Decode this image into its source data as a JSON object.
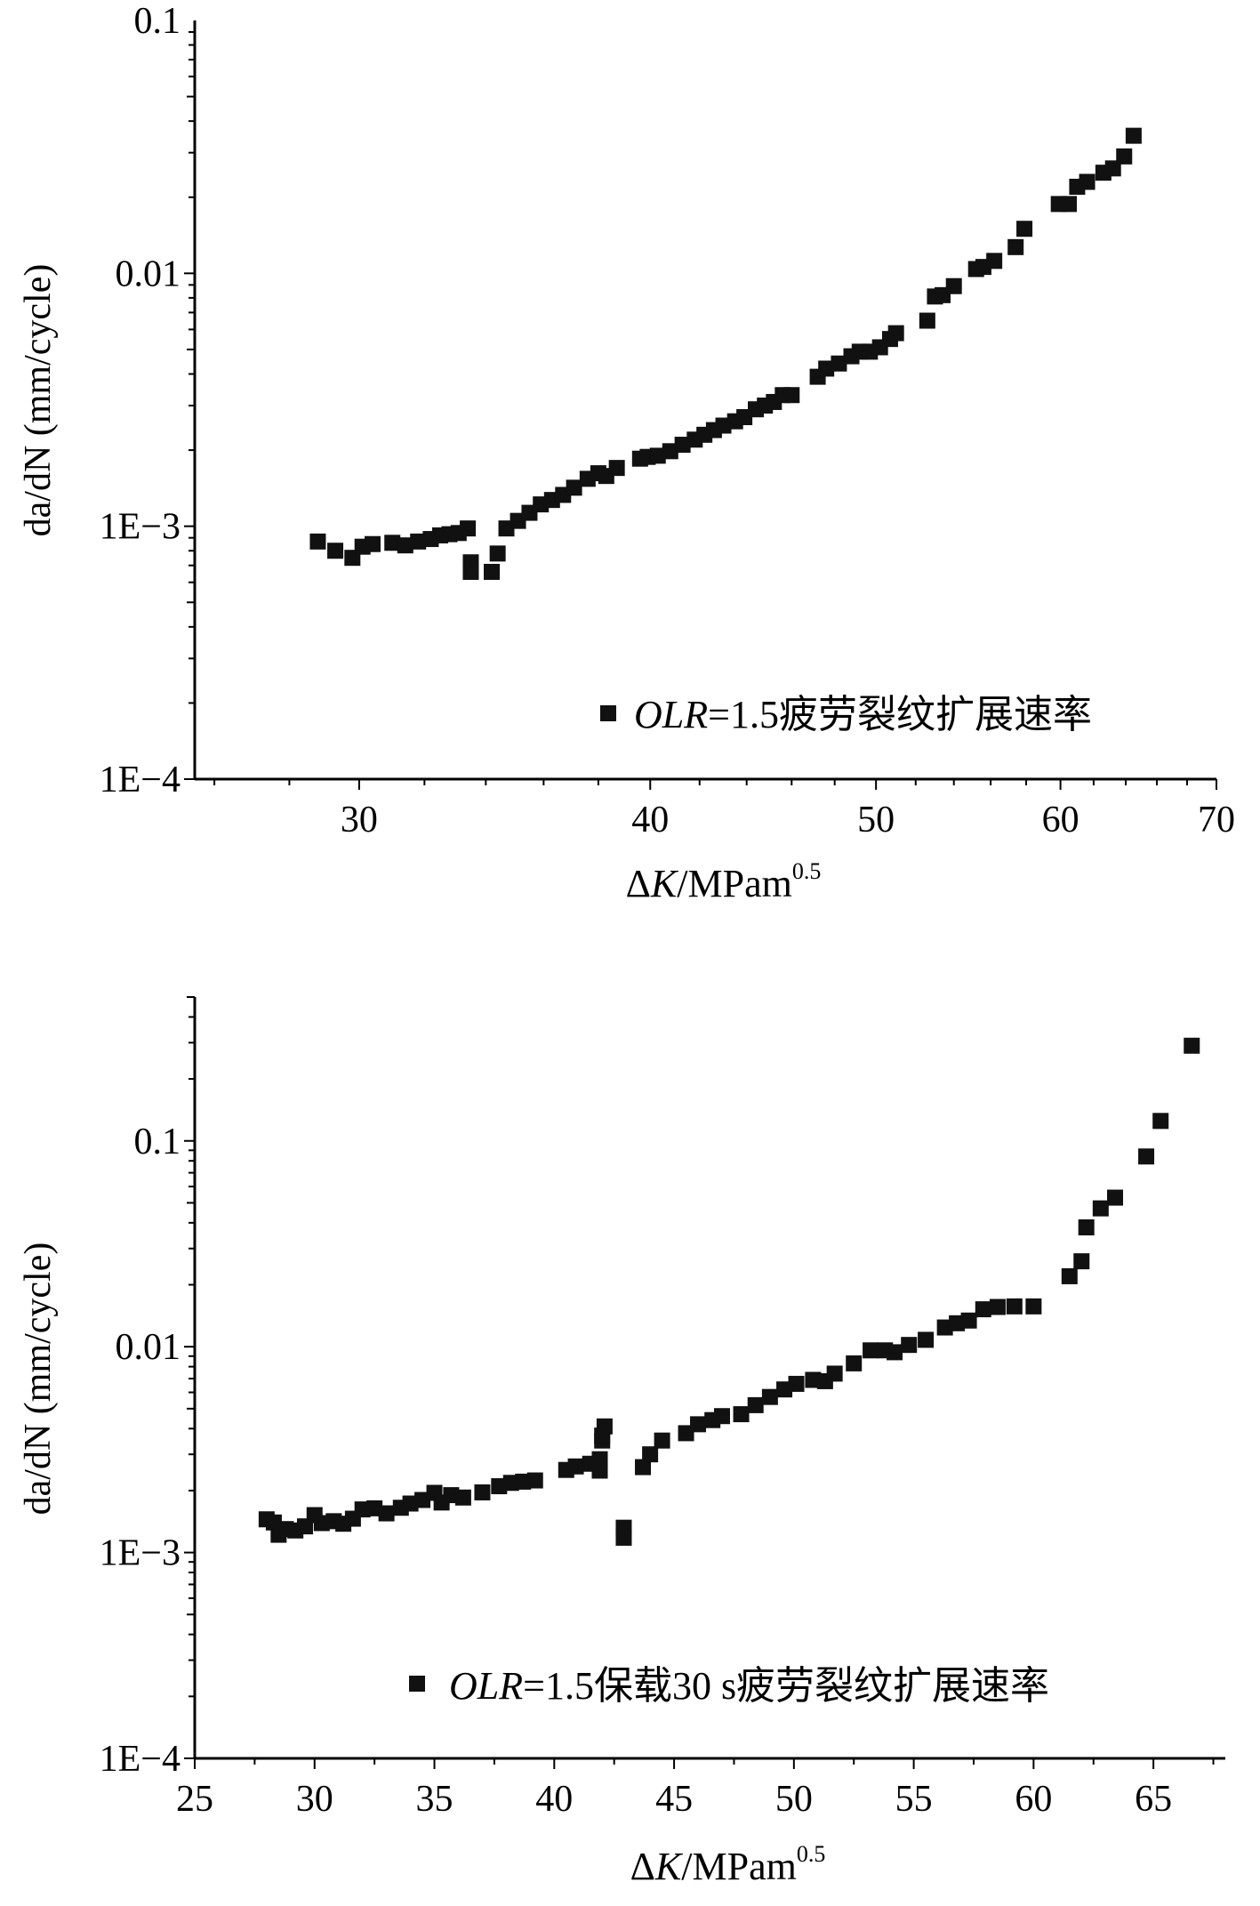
{
  "chart_data": [
    {
      "type": "scatter",
      "xlabel": {
        "prefix": "Δ",
        "italic": "K",
        "unit": "/MPam",
        "superscript": "0.5"
      },
      "ylabel": "da/dN (mm/cycle)",
      "xscale": "log",
      "yscale": "log",
      "xlim": [
        25.5,
        70
      ],
      "ylim": [
        0.0001,
        0.1
      ],
      "x_ticks": [
        30,
        40,
        50,
        60,
        70
      ],
      "x_tick_labels": [
        "30",
        "40",
        "50",
        "60",
        "70"
      ],
      "y_ticks": [
        0.0001,
        0.001,
        0.01,
        0.1
      ],
      "y_tick_labels": [
        "1E−4",
        "1E−3",
        "0.01",
        "0.1"
      ],
      "legend_position": "bottom-right",
      "grid": false,
      "series": [
        {
          "name": "OLR=1.5疲劳裂纹扩展速率",
          "legend": {
            "italic": "OLR",
            "rest": "=1.5疲劳裂纹扩展速率"
          },
          "marker": "square",
          "color": "#111111",
          "points": [
            [
              28.8,
              0.00087
            ],
            [
              29.3,
              0.0008
            ],
            [
              29.8,
              0.00075
            ],
            [
              30.1,
              0.00083
            ],
            [
              30.4,
              0.00085
            ],
            [
              31.0,
              0.00086
            ],
            [
              31.4,
              0.00084
            ],
            [
              31.8,
              0.00087
            ],
            [
              32.2,
              0.00089
            ],
            [
              32.5,
              0.00092
            ],
            [
              32.8,
              0.00093
            ],
            [
              33.1,
              0.00094
            ],
            [
              33.4,
              0.00098
            ],
            [
              33.5,
              0.00072
            ],
            [
              33.5,
              0.00066
            ],
            [
              34.2,
              0.00066
            ],
            [
              34.4,
              0.00078
            ],
            [
              34.7,
              0.00098
            ],
            [
              35.1,
              0.00105
            ],
            [
              35.5,
              0.00113
            ],
            [
              35.9,
              0.00122
            ],
            [
              36.3,
              0.00127
            ],
            [
              36.7,
              0.00133
            ],
            [
              37.1,
              0.00142
            ],
            [
              37.6,
              0.00154
            ],
            [
              38.0,
              0.00162
            ],
            [
              38.3,
              0.00158
            ],
            [
              38.7,
              0.0017
            ],
            [
              39.6,
              0.00185
            ],
            [
              39.9,
              0.00188
            ],
            [
              40.3,
              0.0019
            ],
            [
              40.8,
              0.00198
            ],
            [
              41.3,
              0.0021
            ],
            [
              41.8,
              0.0022
            ],
            [
              42.2,
              0.0023
            ],
            [
              42.6,
              0.0024
            ],
            [
              43.0,
              0.0025
            ],
            [
              43.5,
              0.0026
            ],
            [
              43.9,
              0.0027
            ],
            [
              44.4,
              0.0029
            ],
            [
              44.8,
              0.003
            ],
            [
              45.2,
              0.0031
            ],
            [
              45.6,
              0.0033
            ],
            [
              46.0,
              0.0033
            ],
            [
              47.2,
              0.0039
            ],
            [
              47.6,
              0.0042
            ],
            [
              48.2,
              0.0044
            ],
            [
              48.8,
              0.0047
            ],
            [
              49.2,
              0.0049
            ],
            [
              49.7,
              0.0049
            ],
            [
              50.2,
              0.0051
            ],
            [
              50.7,
              0.0055
            ],
            [
              51.0,
              0.0058
            ],
            [
              52.6,
              0.0065
            ],
            [
              53.0,
              0.0081
            ],
            [
              53.4,
              0.0082
            ],
            [
              54.0,
              0.0089
            ],
            [
              55.2,
              0.0104
            ],
            [
              55.6,
              0.0106
            ],
            [
              56.2,
              0.0112
            ],
            [
              57.4,
              0.0127
            ],
            [
              57.9,
              0.015
            ],
            [
              59.9,
              0.0188
            ],
            [
              60.5,
              0.0188
            ],
            [
              61.0,
              0.022
            ],
            [
              61.6,
              0.023
            ],
            [
              62.6,
              0.025
            ],
            [
              63.2,
              0.026
            ],
            [
              63.9,
              0.029
            ],
            [
              64.5,
              0.035
            ]
          ]
        }
      ]
    },
    {
      "type": "scatter",
      "xlabel": {
        "prefix": "Δ",
        "italic": "K",
        "unit": "/MPam",
        "superscript": "0.5"
      },
      "ylabel": "da/dN (mm/cycle)",
      "xscale": "linear",
      "yscale": "log",
      "xlim": [
        25,
        68
      ],
      "ylim": [
        0.0001,
        0.5
      ],
      "x_ticks": [
        25,
        30,
        35,
        40,
        45,
        50,
        55,
        60,
        65
      ],
      "x_tick_labels": [
        "25",
        "30",
        "35",
        "40",
        "45",
        "50",
        "55",
        "60",
        "65"
      ],
      "y_ticks": [
        0.0001,
        0.001,
        0.01,
        0.1
      ],
      "y_tick_labels": [
        "1E−4",
        "1E−3",
        "0.01",
        "0.1"
      ],
      "legend_position": "bottom-right",
      "grid": false,
      "series": [
        {
          "name": "OLR=1.5保载30 s疲劳裂纹扩展速率",
          "legend": {
            "italic": "OLR",
            "rest": "=1.5保载30 s疲劳裂纹扩展速率"
          },
          "marker": "square",
          "color": "#111111",
          "points": [
            [
              28.0,
              0.00145
            ],
            [
              28.3,
              0.0014
            ],
            [
              28.5,
              0.00122
            ],
            [
              28.8,
              0.0013
            ],
            [
              29.2,
              0.00128
            ],
            [
              29.6,
              0.00134
            ],
            [
              30.0,
              0.00152
            ],
            [
              30.3,
              0.00139
            ],
            [
              30.8,
              0.00142
            ],
            [
              31.2,
              0.00138
            ],
            [
              31.6,
              0.00146
            ],
            [
              32.0,
              0.00162
            ],
            [
              32.5,
              0.00164
            ],
            [
              33.0,
              0.00155
            ],
            [
              33.6,
              0.00165
            ],
            [
              34.0,
              0.00173
            ],
            [
              34.5,
              0.0018
            ],
            [
              35.0,
              0.00195
            ],
            [
              35.3,
              0.00175
            ],
            [
              35.7,
              0.0019
            ],
            [
              36.2,
              0.00185
            ],
            [
              37.0,
              0.00196
            ],
            [
              37.7,
              0.0021
            ],
            [
              38.2,
              0.00218
            ],
            [
              38.7,
              0.00221
            ],
            [
              39.2,
              0.00224
            ],
            [
              40.5,
              0.00252
            ],
            [
              40.9,
              0.00262
            ],
            [
              41.5,
              0.0027
            ],
            [
              41.9,
              0.00284
            ],
            [
              41.9,
              0.0025
            ],
            [
              42.0,
              0.0035
            ],
            [
              42.1,
              0.0041
            ],
            [
              42.0,
              0.0037
            ],
            [
              42.9,
              0.00132
            ],
            [
              42.9,
              0.00118
            ],
            [
              43.7,
              0.0026
            ],
            [
              44.0,
              0.003
            ],
            [
              44.5,
              0.0035
            ],
            [
              45.5,
              0.0038
            ],
            [
              46.0,
              0.0042
            ],
            [
              46.6,
              0.0044
            ],
            [
              47.0,
              0.0046
            ],
            [
              47.8,
              0.0047
            ],
            [
              48.4,
              0.0052
            ],
            [
              49.0,
              0.0057
            ],
            [
              49.6,
              0.0062
            ],
            [
              50.1,
              0.0066
            ],
            [
              50.8,
              0.0069
            ],
            [
              51.3,
              0.0068
            ],
            [
              51.7,
              0.0074
            ],
            [
              52.5,
              0.0083
            ],
            [
              53.2,
              0.0096
            ],
            [
              53.8,
              0.0096
            ],
            [
              54.2,
              0.0094
            ],
            [
              54.8,
              0.0102
            ],
            [
              55.5,
              0.0108
            ],
            [
              56.3,
              0.0124
            ],
            [
              56.8,
              0.013
            ],
            [
              57.3,
              0.0134
            ],
            [
              57.9,
              0.0152
            ],
            [
              58.5,
              0.0156
            ],
            [
              59.2,
              0.0157
            ],
            [
              60.0,
              0.0157
            ],
            [
              61.5,
              0.022
            ],
            [
              62.0,
              0.026
            ],
            [
              62.2,
              0.038
            ],
            [
              62.8,
              0.047
            ],
            [
              63.4,
              0.053
            ],
            [
              64.7,
              0.084
            ],
            [
              65.3,
              0.125
            ],
            [
              66.6,
              0.29
            ]
          ]
        }
      ]
    }
  ]
}
